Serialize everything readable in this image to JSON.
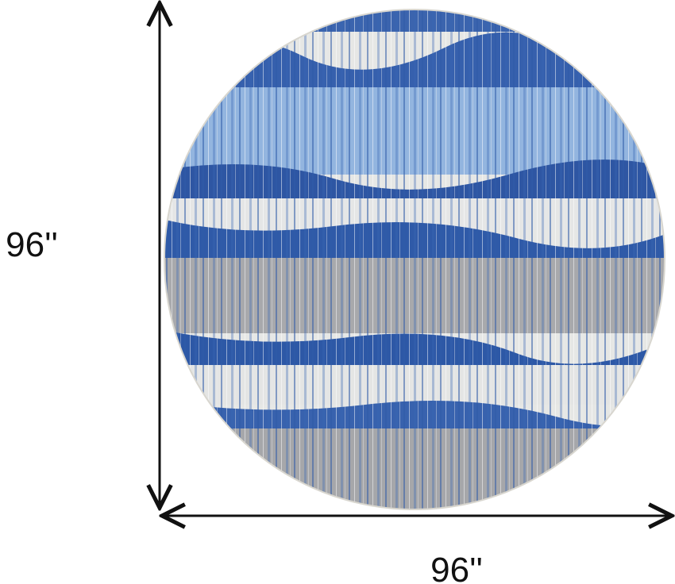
{
  "dimensions": {
    "height": {
      "label": "96''"
    },
    "width": {
      "label": "96''"
    }
  }
}
